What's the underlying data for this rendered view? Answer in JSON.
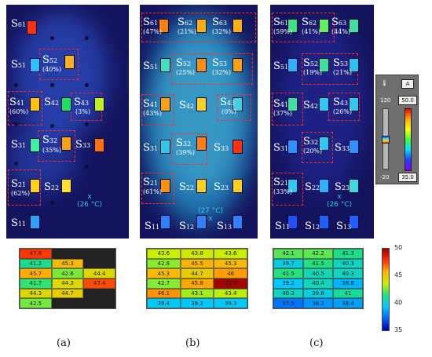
{
  "panels": {
    "a": {
      "sensors": [
        {
          "label": "S",
          "sub": "61",
          "pct": ""
        },
        {
          "label": "S",
          "sub": "51",
          "pct": ""
        },
        {
          "label": "S",
          "sub": "52",
          "pct": "(40%)"
        },
        {
          "label": "S",
          "sub": "41",
          "pct": "(60%)"
        },
        {
          "label": "S",
          "sub": "42",
          "pct": ""
        },
        {
          "label": "S",
          "sub": "43",
          "pct": "(3%)"
        },
        {
          "label": "S",
          "sub": "31",
          "pct": ""
        },
        {
          "label": "S",
          "sub": "32",
          "pct": "(35%)"
        },
        {
          "label": "S",
          "sub": "33",
          "pct": ""
        },
        {
          "label": "S",
          "sub": "21",
          "pct": "(62%)"
        },
        {
          "label": "S",
          "sub": "22",
          "pct": ""
        },
        {
          "label": "S",
          "sub": "11",
          "pct": ""
        }
      ],
      "temp_marker": "x",
      "temp_label": "(26 °C)"
    },
    "b": {
      "sensors": [
        {
          "label": "S",
          "sub": "61",
          "pct": "(47%)"
        },
        {
          "label": "S",
          "sub": "62",
          "pct": "(21%)"
        },
        {
          "label": "S",
          "sub": "63",
          "pct": "(32%)"
        },
        {
          "label": "S",
          "sub": "51",
          "pct": ""
        },
        {
          "label": "S",
          "sub": "52",
          "pct": "(25%)"
        },
        {
          "label": "S",
          "sub": "53",
          "pct": "(32%)"
        },
        {
          "label": "S",
          "sub": "41",
          "pct": "(43%)"
        },
        {
          "label": "S",
          "sub": "42",
          "pct": ""
        },
        {
          "label": "S",
          "sub": "43",
          "pct": "(0%)"
        },
        {
          "label": "S",
          "sub": "31",
          "pct": ""
        },
        {
          "label": "S",
          "sub": "32",
          "pct": "(39%)"
        },
        {
          "label": "S",
          "sub": "33",
          "pct": ""
        },
        {
          "label": "S",
          "sub": "21",
          "pct": "(61%)"
        },
        {
          "label": "S",
          "sub": "22",
          "pct": ""
        },
        {
          "label": "S",
          "sub": "23",
          "pct": ""
        },
        {
          "label": "S",
          "sub": "11",
          "pct": ""
        },
        {
          "label": "S",
          "sub": "12",
          "pct": ""
        },
        {
          "label": "S",
          "sub": "13",
          "pct": ""
        }
      ],
      "temp_marker": "x",
      "temp_label": "(27 °C)"
    },
    "c": {
      "sensors": [
        {
          "label": "S",
          "sub": "61",
          "pct": "(59%)"
        },
        {
          "label": "S",
          "sub": "62",
          "pct": "(41%)"
        },
        {
          "label": "S",
          "sub": "63",
          "pct": "(44%)"
        },
        {
          "label": "S",
          "sub": "51",
          "pct": ""
        },
        {
          "label": "S",
          "sub": "52",
          "pct": "(19%)"
        },
        {
          "label": "S",
          "sub": "53",
          "pct": "(21%)"
        },
        {
          "label": "S",
          "sub": "41",
          "pct": "(37%)"
        },
        {
          "label": "S",
          "sub": "42",
          "pct": ""
        },
        {
          "label": "S",
          "sub": "43",
          "pct": "(26%)"
        },
        {
          "label": "S",
          "sub": "31",
          "pct": ""
        },
        {
          "label": "S",
          "sub": "32",
          "pct": "(20%)"
        },
        {
          "label": "S",
          "sub": "33",
          "pct": ""
        },
        {
          "label": "S",
          "sub": "21",
          "pct": "(33%)"
        },
        {
          "label": "S",
          "sub": "22",
          "pct": ""
        },
        {
          "label": "S",
          "sub": "23",
          "pct": ""
        },
        {
          "label": "S",
          "sub": "11",
          "pct": ""
        },
        {
          "label": "S",
          "sub": "12",
          "pct": ""
        },
        {
          "label": "S",
          "sub": "13",
          "pct": ""
        }
      ],
      "temp_marker": "x",
      "temp_label": "(26 °C)"
    }
  },
  "camera_legend": {
    "icon": "thermometer-icon",
    "mode": "A",
    "top_scale": "120",
    "bottom_scale": "-20",
    "top_value": "50.0",
    "bottom_value": "35.0"
  },
  "grids": {
    "a": [
      [
        "47.8",
        "",
        ""
      ],
      [
        "41.2",
        "45.3",
        ""
      ],
      [
        "45.7",
        "42.6",
        "44.4"
      ],
      [
        "41.7",
        "44.3",
        "47.4"
      ],
      [
        "44.3",
        "44.7",
        ""
      ],
      [
        "42.5",
        "",
        ""
      ]
    ],
    "b": [
      [
        "43.6",
        "43.8",
        "43.6"
      ],
      [
        "42.8",
        "45.5",
        "45.3"
      ],
      [
        "45.3",
        "44.7",
        "46"
      ],
      [
        "42.7",
        "45.8",
        "49.9"
      ],
      [
        "46.1",
        "43.1",
        "43.4"
      ],
      [
        "39.4",
        "39.2",
        "39.3"
      ]
    ],
    "c": [
      [
        "42.1",
        "42.2",
        "41.3"
      ],
      [
        "39.7",
        "41.5",
        "40.3"
      ],
      [
        "41.5",
        "40.5",
        "40.3"
      ],
      [
        "39.2",
        "40.4",
        "38.8"
      ],
      [
        "40.3",
        "39.8",
        "41"
      ],
      [
        "37.5",
        "38.2",
        "38.4"
      ]
    ]
  },
  "colorbar": {
    "ticks": [
      "50",
      "45",
      "40",
      "35"
    ],
    "min": 35,
    "max": 50
  },
  "captions": [
    "(a)",
    "(b)",
    "(c)"
  ]
}
